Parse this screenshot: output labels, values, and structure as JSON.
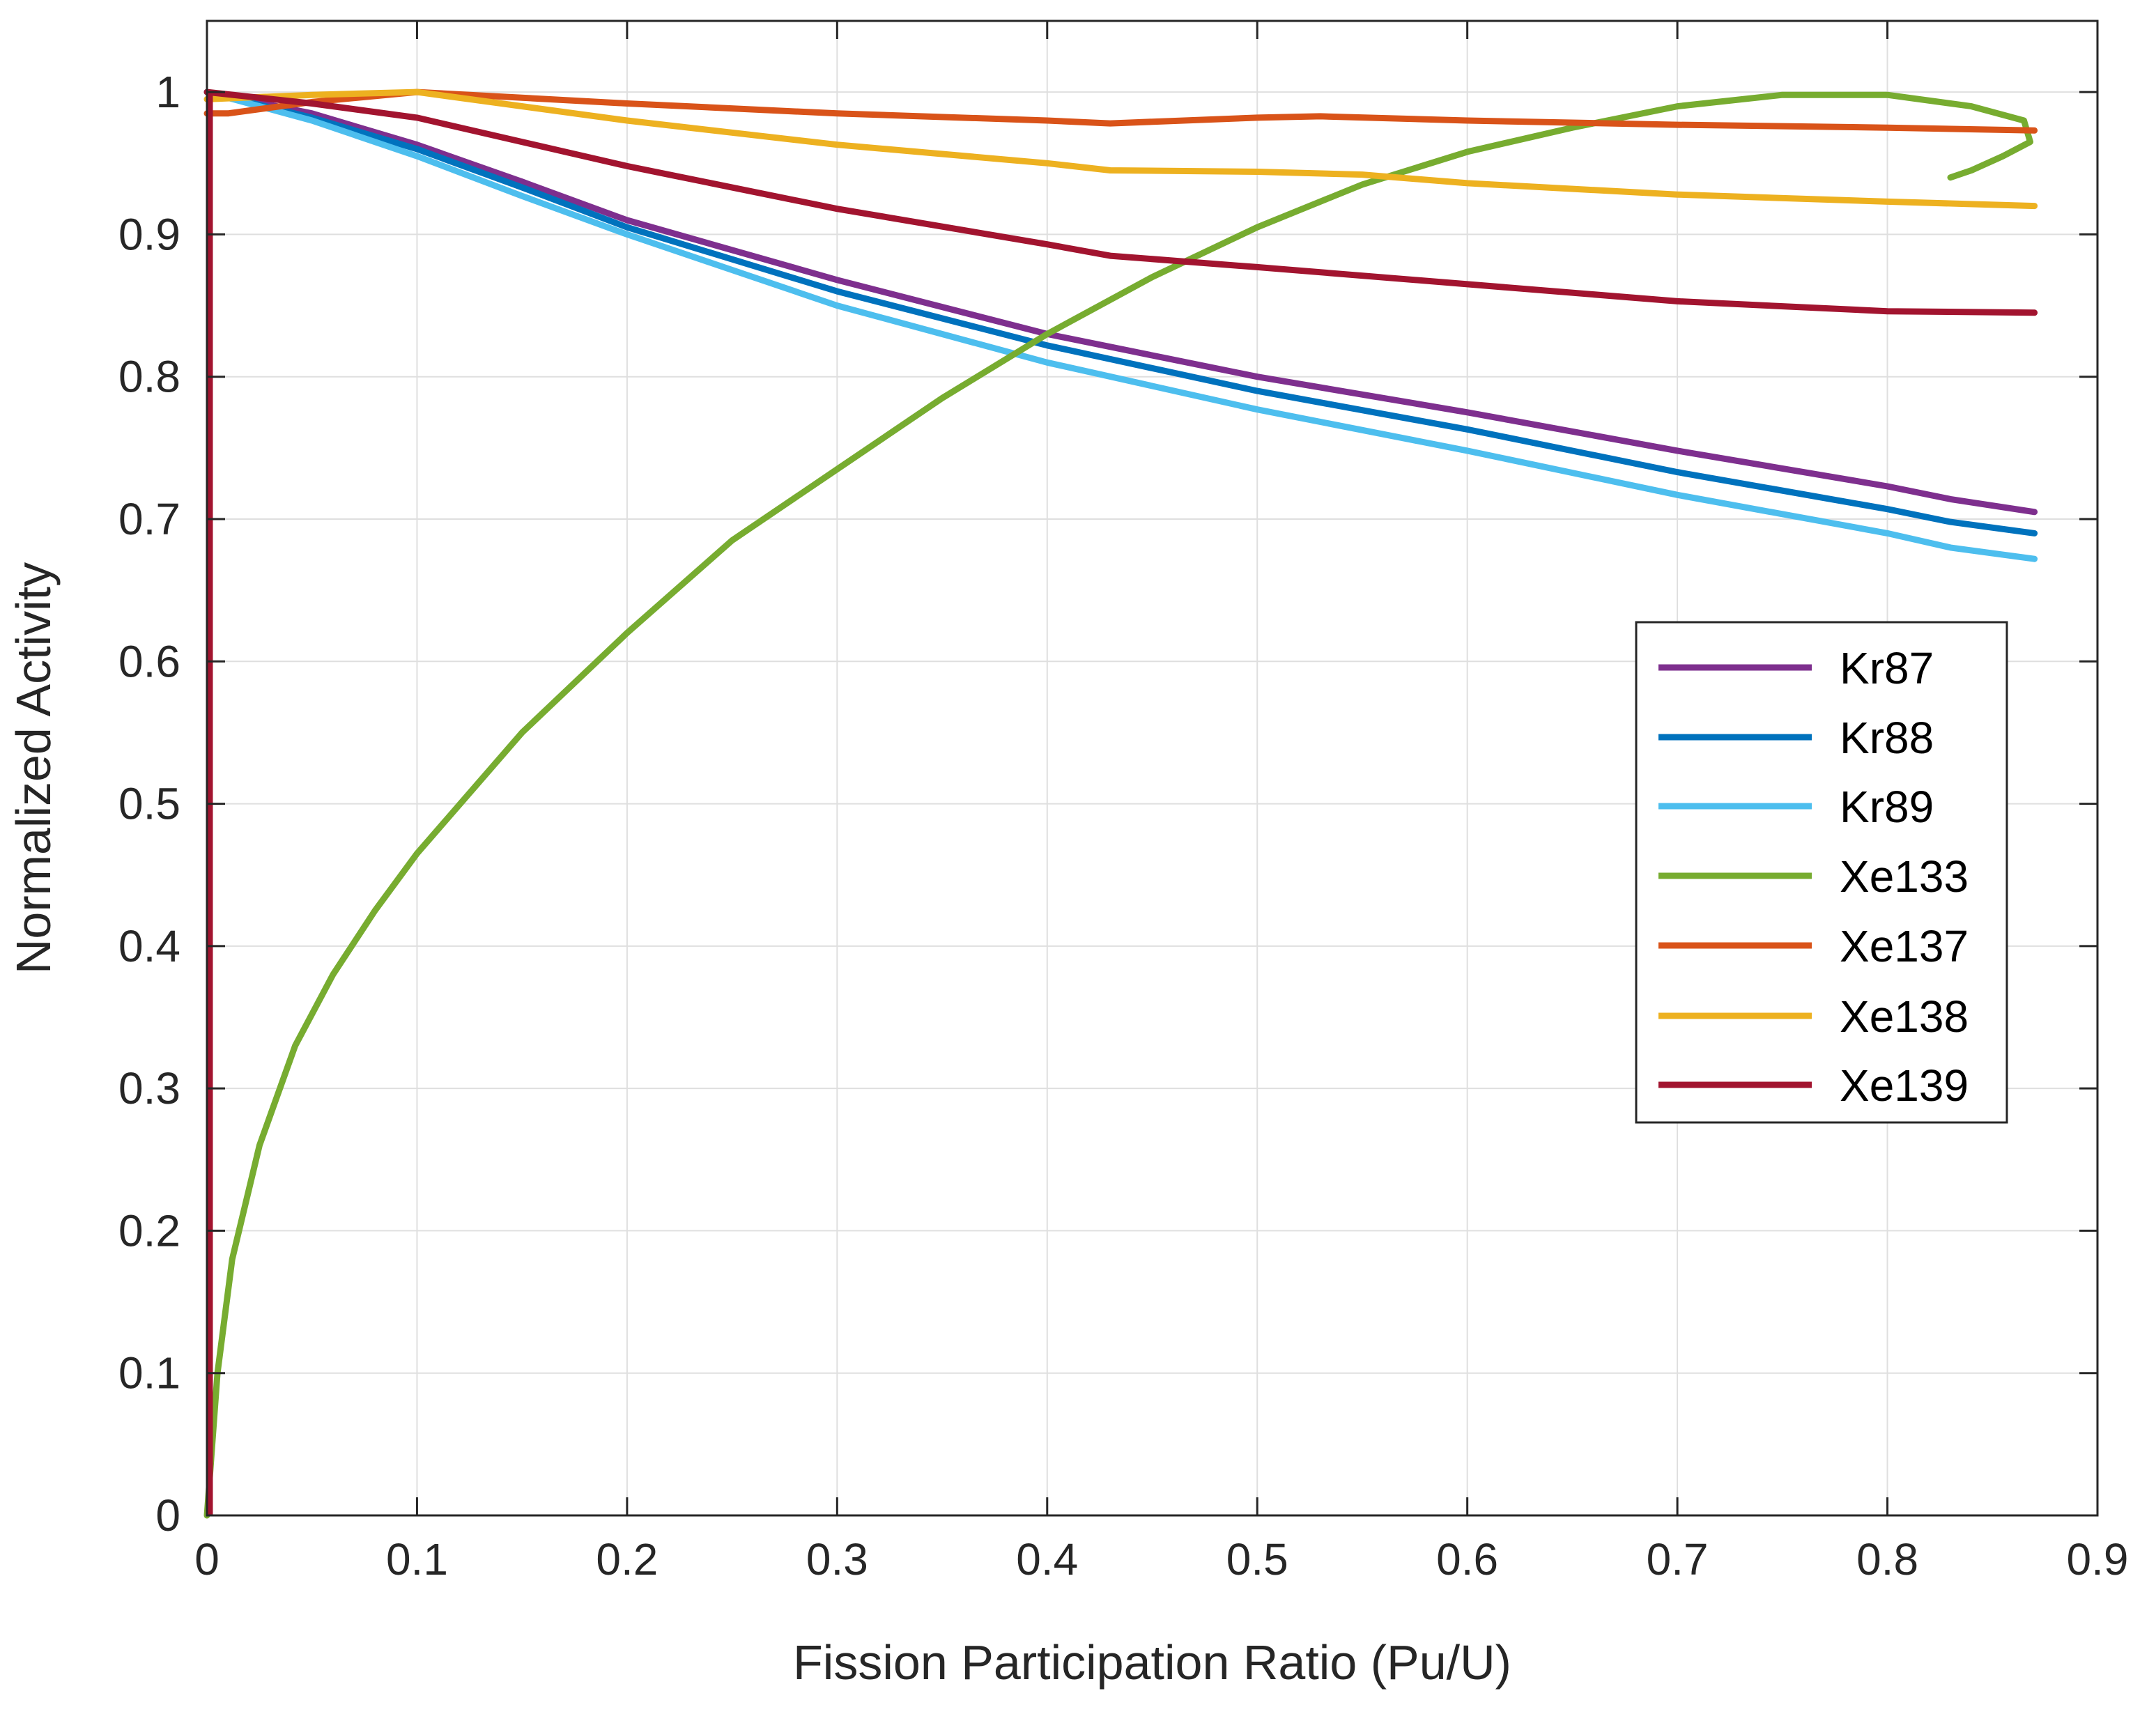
{
  "chart_data": {
    "type": "line",
    "title": "",
    "xlabel": "Fission Participation Ratio (Pu/U)",
    "ylabel": "Normalized Activity",
    "xlim": [
      0,
      0.9
    ],
    "ylim": [
      0,
      1.05
    ],
    "xticks": [
      0,
      0.1,
      0.2,
      0.3,
      0.4,
      0.5,
      0.6,
      0.7,
      0.8,
      0.9
    ],
    "xtick_labels": [
      "0",
      "0.1",
      "0.2",
      "0.3",
      "0.4",
      "0.5",
      "0.6",
      "0.7",
      "0.8",
      "0.9"
    ],
    "yticks": [
      0,
      0.1,
      0.2,
      0.3,
      0.4,
      0.5,
      0.6,
      0.7,
      0.8,
      0.9,
      1
    ],
    "ytick_labels": [
      "0",
      "0.1",
      "0.2",
      "0.3",
      "0.4",
      "0.5",
      "0.6",
      "0.7",
      "0.8",
      "0.9",
      "1"
    ],
    "grid": true,
    "legend_position": "right",
    "series": [
      {
        "name": "Kr87",
        "color": "#7E2F8E",
        "points": [
          [
            0,
            1.0
          ],
          [
            0.05,
            0.985
          ],
          [
            0.1,
            0.963
          ],
          [
            0.15,
            0.937
          ],
          [
            0.2,
            0.91
          ],
          [
            0.3,
            0.868
          ],
          [
            0.4,
            0.83
          ],
          [
            0.5,
            0.8
          ],
          [
            0.6,
            0.775
          ],
          [
            0.7,
            0.748
          ],
          [
            0.8,
            0.723
          ],
          [
            0.83,
            0.714
          ],
          [
            0.87,
            0.705
          ]
        ]
      },
      {
        "name": "Kr88",
        "color": "#0072BD",
        "points": [
          [
            0,
            1.0
          ],
          [
            0.05,
            0.982
          ],
          [
            0.1,
            0.96
          ],
          [
            0.15,
            0.933
          ],
          [
            0.2,
            0.905
          ],
          [
            0.3,
            0.86
          ],
          [
            0.4,
            0.822
          ],
          [
            0.5,
            0.79
          ],
          [
            0.6,
            0.763
          ],
          [
            0.7,
            0.733
          ],
          [
            0.8,
            0.707
          ],
          [
            0.83,
            0.698
          ],
          [
            0.87,
            0.69
          ]
        ]
      },
      {
        "name": "Kr89",
        "color": "#4DBEEE",
        "points": [
          [
            0,
            1.0
          ],
          [
            0.05,
            0.98
          ],
          [
            0.1,
            0.955
          ],
          [
            0.15,
            0.927
          ],
          [
            0.2,
            0.9
          ],
          [
            0.3,
            0.85
          ],
          [
            0.4,
            0.81
          ],
          [
            0.5,
            0.777
          ],
          [
            0.6,
            0.748
          ],
          [
            0.7,
            0.717
          ],
          [
            0.8,
            0.69
          ],
          [
            0.83,
            0.68
          ],
          [
            0.87,
            0.672
          ]
        ]
      },
      {
        "name": "Xe133",
        "color": "#77AC30",
        "points": [
          [
            0,
            0.0
          ],
          [
            0.005,
            0.1
          ],
          [
            0.012,
            0.18
          ],
          [
            0.025,
            0.26
          ],
          [
            0.042,
            0.33
          ],
          [
            0.06,
            0.38
          ],
          [
            0.08,
            0.425
          ],
          [
            0.1,
            0.465
          ],
          [
            0.15,
            0.55
          ],
          [
            0.2,
            0.62
          ],
          [
            0.25,
            0.685
          ],
          [
            0.3,
            0.735
          ],
          [
            0.35,
            0.785
          ],
          [
            0.4,
            0.83
          ],
          [
            0.45,
            0.87
          ],
          [
            0.5,
            0.905
          ],
          [
            0.55,
            0.935
          ],
          [
            0.6,
            0.958
          ],
          [
            0.65,
            0.975
          ],
          [
            0.7,
            0.99
          ],
          [
            0.75,
            0.998
          ],
          [
            0.8,
            0.998
          ],
          [
            0.84,
            0.99
          ],
          [
            0.865,
            0.98
          ],
          [
            0.868,
            0.965
          ],
          [
            0.855,
            0.955
          ],
          [
            0.84,
            0.945
          ],
          [
            0.83,
            0.94
          ]
        ]
      },
      {
        "name": "Xe137",
        "color": "#D95319",
        "points": [
          [
            0,
            0.985
          ],
          [
            0.01,
            0.985
          ],
          [
            0.05,
            0.993
          ],
          [
            0.1,
            1.0
          ],
          [
            0.2,
            0.992
          ],
          [
            0.3,
            0.985
          ],
          [
            0.4,
            0.98
          ],
          [
            0.43,
            0.978
          ],
          [
            0.5,
            0.982
          ],
          [
            0.53,
            0.983
          ],
          [
            0.6,
            0.98
          ],
          [
            0.7,
            0.977
          ],
          [
            0.8,
            0.975
          ],
          [
            0.87,
            0.973
          ]
        ]
      },
      {
        "name": "Xe138",
        "color": "#EDB120",
        "points": [
          [
            0,
            0.995
          ],
          [
            0.05,
            0.998
          ],
          [
            0.1,
            1.0
          ],
          [
            0.2,
            0.98
          ],
          [
            0.3,
            0.963
          ],
          [
            0.4,
            0.95
          ],
          [
            0.43,
            0.945
          ],
          [
            0.5,
            0.944
          ],
          [
            0.55,
            0.942
          ],
          [
            0.6,
            0.936
          ],
          [
            0.7,
            0.928
          ],
          [
            0.8,
            0.923
          ],
          [
            0.87,
            0.92
          ]
        ]
      },
      {
        "name": "Xe139",
        "color": "#A2142F",
        "points": [
          [
            0,
            1.0
          ],
          [
            0.05,
            0.992
          ],
          [
            0.1,
            0.982
          ],
          [
            0.2,
            0.948
          ],
          [
            0.3,
            0.918
          ],
          [
            0.4,
            0.893
          ],
          [
            0.43,
            0.885
          ],
          [
            0.5,
            0.877
          ],
          [
            0.6,
            0.865
          ],
          [
            0.7,
            0.853
          ],
          [
            0.8,
            0.846
          ],
          [
            0.87,
            0.845
          ]
        ]
      }
    ],
    "axis_spike": {
      "series": "Xe139",
      "x": 0,
      "from": 0,
      "to": 1
    }
  }
}
